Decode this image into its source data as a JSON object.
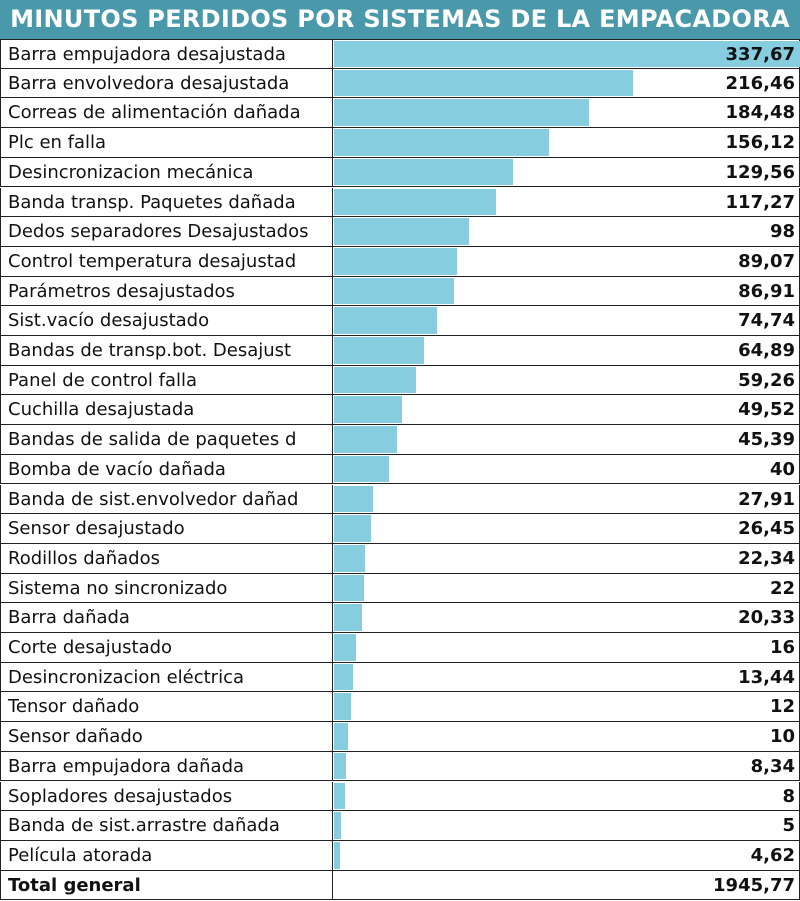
{
  "chart_data": {
    "type": "bar",
    "orientation": "horizontal",
    "title": "MINUTOS PERDIDOS POR SISTEMAS DE LA EMPACADORA",
    "categories": [
      "Barra empujadora desajustada",
      "Barra envolvedora desajustada",
      "Correas de alimentación dañada",
      "Plc en falla",
      "Desincronizacion mecánica",
      "Banda transp. Paquetes dañada",
      "Dedos separadores Desajustados",
      "Control temperatura desajustad",
      "Parámetros desajustados",
      "Sist.vacío desajustado",
      "Bandas de transp.bot. Desajust",
      "Panel de control falla",
      "Cuchilla desajustada",
      "Bandas de salida de paquetes d",
      "Bomba de vacío dañada",
      "Banda de sist.envolvedor dañad",
      "Sensor desajustado",
      "Rodillos dañados",
      "Sistema no sincronizado",
      "Barra dañada",
      "Corte desajustado",
      "Desincronizacion eléctrica",
      "Tensor dañado",
      "Sensor dañado",
      "Barra empujadora dañada",
      "Sopladores desajustados",
      "Banda de sist.arrastre dañada",
      "Película atorada"
    ],
    "values": [
      337.67,
      216.46,
      184.48,
      156.12,
      129.56,
      117.27,
      98,
      89.07,
      86.91,
      74.74,
      64.89,
      59.26,
      49.52,
      45.39,
      40,
      27.91,
      26.45,
      22.34,
      22,
      20.33,
      16,
      13.44,
      12,
      10,
      8.34,
      8,
      5,
      4.62
    ],
    "value_labels": [
      "337,67",
      "216,46",
      "184,48",
      "156,12",
      "129,56",
      "117,27",
      "98",
      "89,07",
      "86,91",
      "74,74",
      "64,89",
      "59,26",
      "49,52",
      "45,39",
      "40",
      "27,91",
      "26,45",
      "22,34",
      "22",
      "20,33",
      "16",
      "13,44",
      "12",
      "10",
      "8,34",
      "8",
      "5",
      "4,62"
    ],
    "total_label": "Total general",
    "total_value": "1945,77",
    "xlim": [
      0,
      337.67
    ],
    "bar_color": "#87cde0",
    "title_color": "#4a99aa"
  }
}
